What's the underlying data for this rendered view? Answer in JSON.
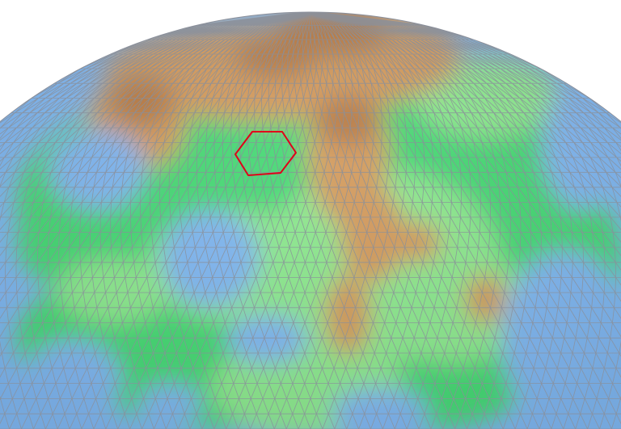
{
  "scene": {
    "background_color": "#ffffff",
    "terrain_colors": {
      "ocean": "#7fb6f0",
      "lowland": "#44d873",
      "plain": "#8ce88e",
      "highland": "#d39a5b",
      "peak": "#b87a44"
    },
    "grid_line_color": "#8a8f9a",
    "selection_color": "#e0001a",
    "selected_cell": {
      "row": 3,
      "col": 6
    }
  }
}
